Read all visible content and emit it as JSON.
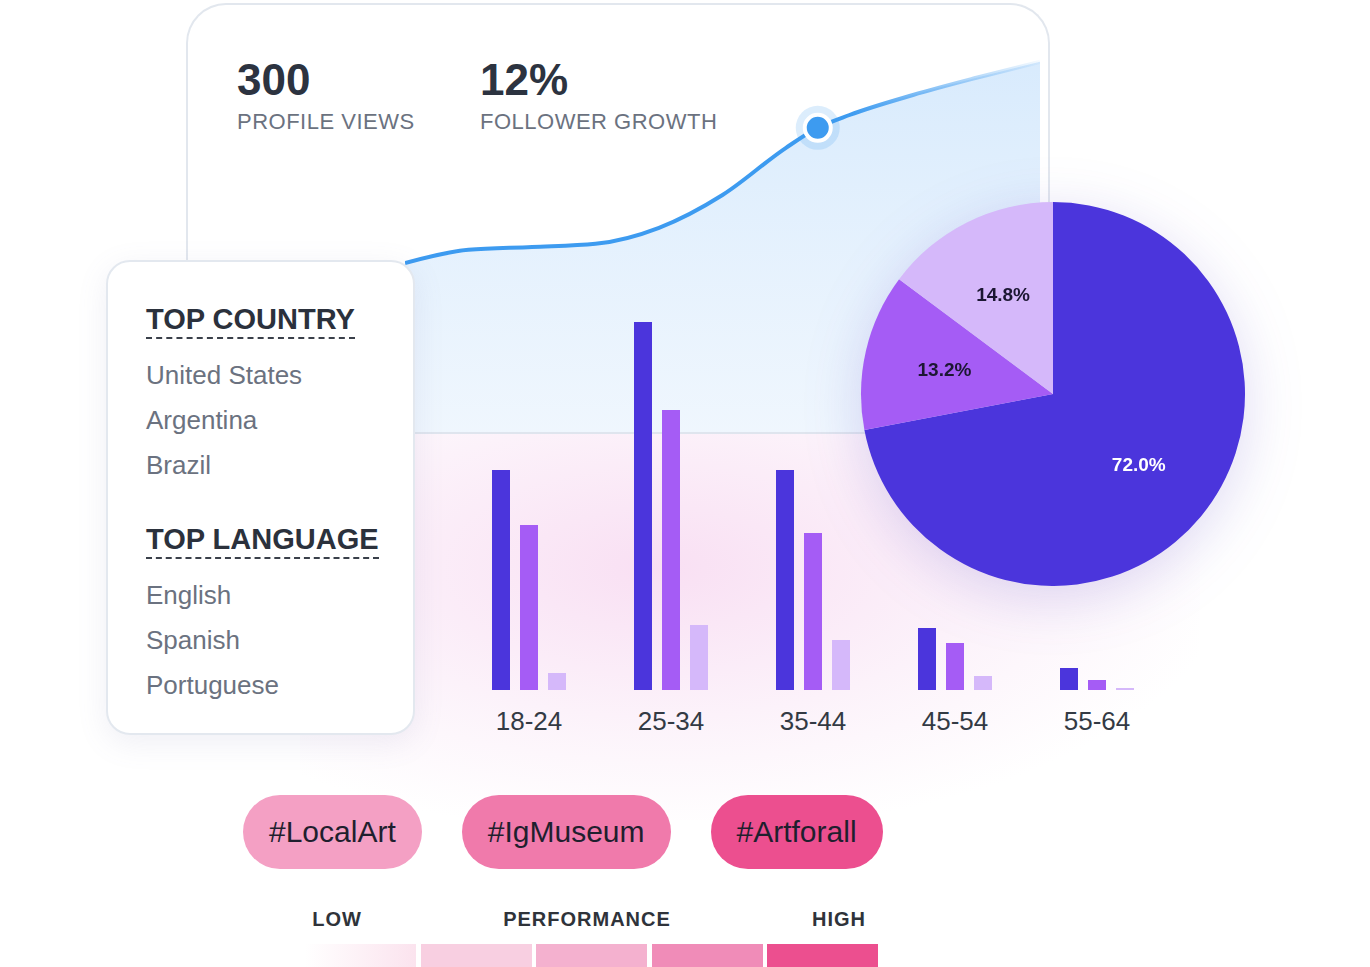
{
  "chart_data": [
    {
      "type": "line",
      "x": [
        0,
        1,
        2,
        3,
        4,
        5,
        6,
        6.5,
        7,
        8,
        9,
        10
      ],
      "values": [
        42.5,
        45.8,
        46.5,
        47.3,
        51.3,
        59.5,
        71.3,
        76.3,
        79.5,
        84.5,
        88.8,
        92.8
      ],
      "highlight": 7,
      "xlim": [
        0,
        10
      ],
      "ylim": [
        0,
        100
      ],
      "tick_labels": false,
      "color": "#3d9bf0"
    },
    {
      "type": "bar",
      "categories": [
        "18-24",
        "25-34",
        "35-44",
        "45-54",
        "55-64"
      ],
      "series": [
        {
          "color": "#4b35dc",
          "values": [
            220,
            368,
            220,
            62,
            22
          ]
        },
        {
          "color": "#a55cf5",
          "values": [
            165,
            280,
            157,
            47,
            10
          ]
        },
        {
          "color": "#d5b8fa",
          "values": [
            17,
            65,
            50,
            14,
            2
          ]
        }
      ],
      "ylim": [
        0,
        400
      ],
      "tick_labels": "x"
    },
    {
      "type": "pie",
      "values": [
        72.0,
        13.2,
        14.8
      ],
      "value_labels": [
        "72.0%",
        "13.2%",
        "14.8%"
      ],
      "colors": [
        "#4b35dc",
        "#a55cf5",
        "#d5b8fa"
      ],
      "data_labels": true
    }
  ],
  "stats": [
    {
      "value": "300",
      "label": "PROFILE VIEWS"
    },
    {
      "value": "12%",
      "label": "FOLLOWER GROWTH"
    }
  ],
  "top_country": {
    "title": "TOP COUNTRY",
    "items": [
      "United States",
      "Argentina",
      "Brazil"
    ]
  },
  "top_language": {
    "title": "TOP LANGUAGE",
    "items": [
      "English",
      "Spanish",
      "Portuguese"
    ]
  },
  "hashtags": [
    {
      "label": "#LocalArt",
      "color": "#f4a0c4"
    },
    {
      "label": "#IgMuseum",
      "color": "#f07aab"
    },
    {
      "label": "#Artforall",
      "color": "#ec4f8f"
    }
  ],
  "performance": {
    "low": "LOW",
    "title": "PERFORMANCE",
    "high": "HIGH",
    "colors": [
      "#fbe3ee",
      "#f8cfe1",
      "#f4b1cf",
      "#f08cb8",
      "#ec4f8f"
    ]
  }
}
